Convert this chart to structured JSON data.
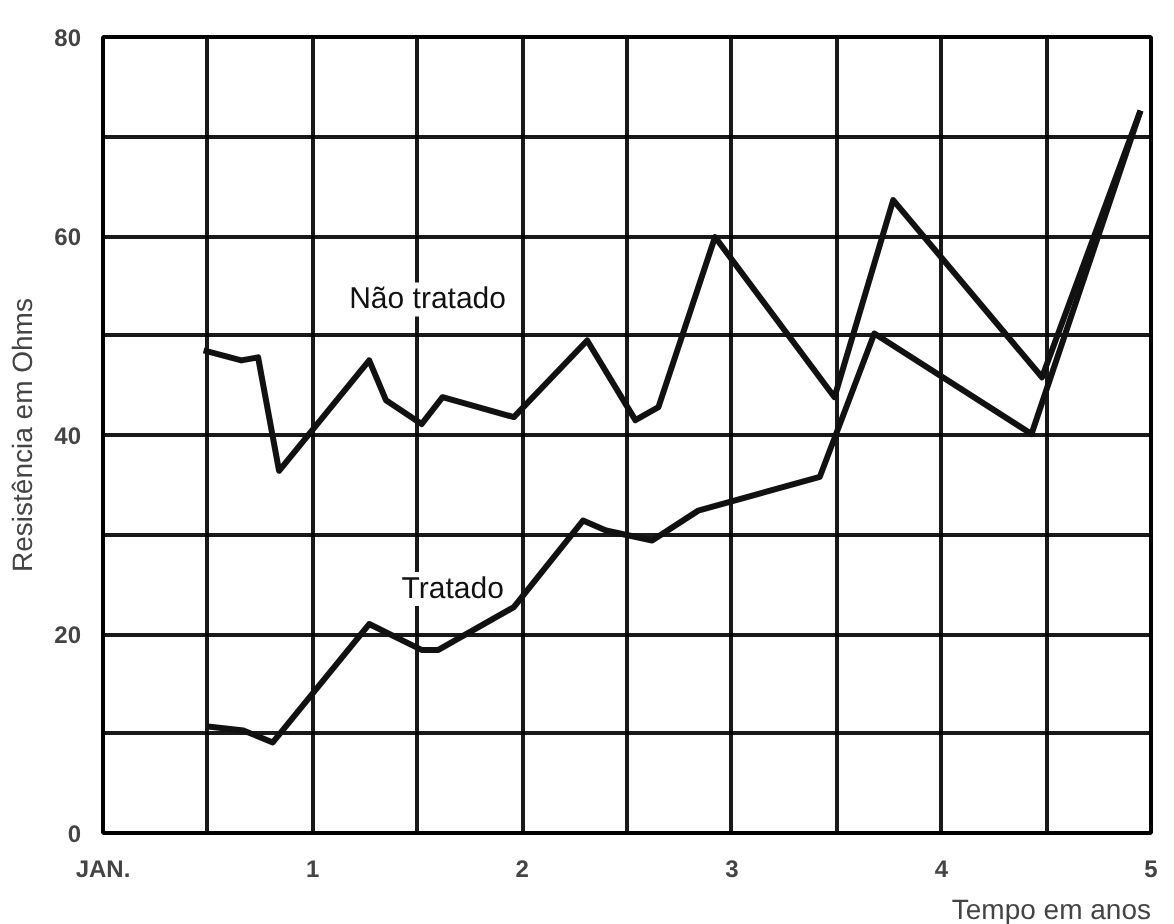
{
  "chart_data": {
    "type": "line",
    "xlabel": "Tempo em anos",
    "ylabel": "Resistência em Ohms",
    "xlim": [
      0,
      5
    ],
    "ylim": [
      0,
      80
    ],
    "xticks": [
      {
        "value": 0,
        "label": "JAN."
      },
      {
        "value": 0.5,
        "label": null
      },
      1,
      {
        "value": 1.5,
        "label": null
      },
      2,
      {
        "value": 2.5,
        "label": null
      },
      3,
      {
        "value": 3.5,
        "label": null
      },
      4,
      {
        "value": 4.5,
        "label": null
      },
      5
    ],
    "yticks": [
      0,
      {
        "value": 10,
        "label": null
      },
      20,
      {
        "value": 30,
        "label": null
      },
      40,
      {
        "value": 50,
        "label": null
      },
      60,
      {
        "value": 70,
        "label": null
      },
      80
    ],
    "grid": true,
    "legend": false,
    "marker": "none",
    "line_style": "solid",
    "series": [
      {
        "name": "Não tratado",
        "color": "#111111",
        "x": [
          0.48,
          0.66,
          0.74,
          0.84,
          1.27,
          1.35,
          1.52,
          1.62,
          1.96,
          2.31,
          2.54,
          2.65,
          2.92,
          3.49,
          3.77,
          4.48,
          4.95
        ],
        "values": [
          48.5,
          47.5,
          47.8,
          36.4,
          47.5,
          43.5,
          41.1,
          43.8,
          41.8,
          49.5,
          41.5,
          42.8,
          59.9,
          43.8,
          63.6,
          45.8,
          72.6
        ]
      },
      {
        "name": "Tratado",
        "color": "#111111",
        "x": [
          0.5,
          0.67,
          0.81,
          1.27,
          1.52,
          1.6,
          1.96,
          2.29,
          2.4,
          2.62,
          2.84,
          3.42,
          3.68,
          4.43,
          4.95
        ],
        "values": [
          10.7,
          10.3,
          9.1,
          21.0,
          18.4,
          18.4,
          22.7,
          31.4,
          30.4,
          29.4,
          32.4,
          35.8,
          50.2,
          40.1,
          72.6
        ]
      }
    ]
  }
}
